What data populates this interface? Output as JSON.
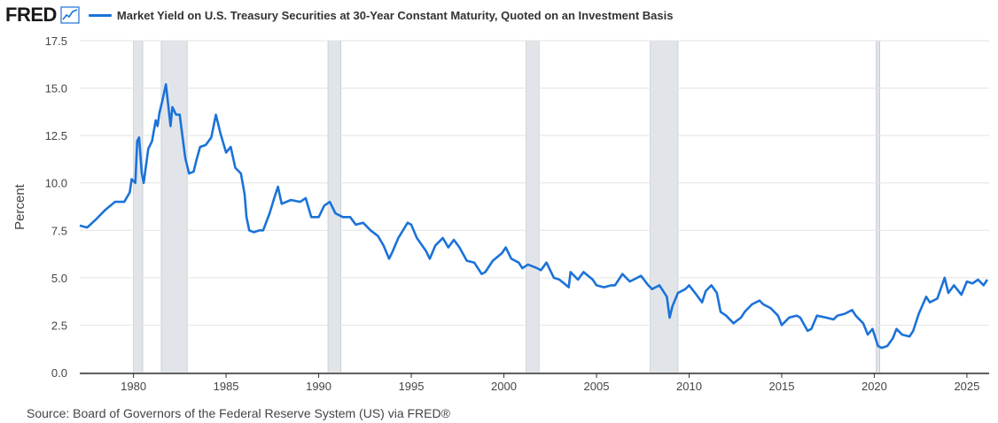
{
  "header": {
    "logo": "FRED",
    "logo_icon": "line-chart-icon"
  },
  "chart_data": {
    "type": "line",
    "series": [
      {
        "name": "Market Yield on U.S. Treasury Securities at 30-Year Constant Maturity, Quoted on an Investment Basis",
        "color": "#1b72d9",
        "points": [
          [
            1977.1,
            7.75
          ],
          [
            1977.5,
            7.65
          ],
          [
            1978.0,
            8.1
          ],
          [
            1978.5,
            8.6
          ],
          [
            1979.0,
            9.0
          ],
          [
            1979.5,
            9.0
          ],
          [
            1979.8,
            9.5
          ],
          [
            1979.9,
            10.2
          ],
          [
            1980.1,
            10.0
          ],
          [
            1980.2,
            12.2
          ],
          [
            1980.3,
            12.4
          ],
          [
            1980.45,
            10.5
          ],
          [
            1980.55,
            10.0
          ],
          [
            1980.8,
            11.8
          ],
          [
            1981.0,
            12.2
          ],
          [
            1981.2,
            13.3
          ],
          [
            1981.3,
            13.0
          ],
          [
            1981.4,
            13.7
          ],
          [
            1981.55,
            14.3
          ],
          [
            1981.75,
            15.2
          ],
          [
            1981.9,
            13.9
          ],
          [
            1982.0,
            13.0
          ],
          [
            1982.1,
            14.0
          ],
          [
            1982.3,
            13.6
          ],
          [
            1982.5,
            13.6
          ],
          [
            1982.6,
            12.8
          ],
          [
            1982.8,
            11.3
          ],
          [
            1983.0,
            10.5
          ],
          [
            1983.25,
            10.6
          ],
          [
            1983.4,
            11.2
          ],
          [
            1983.6,
            11.9
          ],
          [
            1983.9,
            12.0
          ],
          [
            1984.2,
            12.4
          ],
          [
            1984.45,
            13.6
          ],
          [
            1984.7,
            12.6
          ],
          [
            1985.0,
            11.6
          ],
          [
            1985.25,
            11.9
          ],
          [
            1985.5,
            10.8
          ],
          [
            1985.8,
            10.5
          ],
          [
            1986.0,
            9.4
          ],
          [
            1986.1,
            8.2
          ],
          [
            1986.25,
            7.5
          ],
          [
            1986.5,
            7.4
          ],
          [
            1986.8,
            7.5
          ],
          [
            1987.0,
            7.5
          ],
          [
            1987.35,
            8.4
          ],
          [
            1987.6,
            9.2
          ],
          [
            1987.8,
            9.8
          ],
          [
            1988.0,
            8.9
          ],
          [
            1988.5,
            9.1
          ],
          [
            1989.0,
            9.0
          ],
          [
            1989.3,
            9.2
          ],
          [
            1989.6,
            8.2
          ],
          [
            1990.0,
            8.2
          ],
          [
            1990.3,
            8.8
          ],
          [
            1990.6,
            9.0
          ],
          [
            1990.9,
            8.4
          ],
          [
            1991.3,
            8.2
          ],
          [
            1991.7,
            8.2
          ],
          [
            1992.0,
            7.8
          ],
          [
            1992.4,
            7.9
          ],
          [
            1992.8,
            7.5
          ],
          [
            1993.2,
            7.2
          ],
          [
            1993.5,
            6.7
          ],
          [
            1993.8,
            6.0
          ],
          [
            1994.0,
            6.4
          ],
          [
            1994.3,
            7.1
          ],
          [
            1994.8,
            7.9
          ],
          [
            1995.0,
            7.8
          ],
          [
            1995.3,
            7.1
          ],
          [
            1995.8,
            6.4
          ],
          [
            1996.0,
            6.0
          ],
          [
            1996.3,
            6.7
          ],
          [
            1996.7,
            7.1
          ],
          [
            1997.0,
            6.6
          ],
          [
            1997.3,
            7.0
          ],
          [
            1997.6,
            6.6
          ],
          [
            1998.0,
            5.9
          ],
          [
            1998.4,
            5.8
          ],
          [
            1998.8,
            5.2
          ],
          [
            1999.0,
            5.3
          ],
          [
            1999.4,
            5.9
          ],
          [
            1999.9,
            6.3
          ],
          [
            2000.1,
            6.6
          ],
          [
            2000.4,
            6.0
          ],
          [
            2000.8,
            5.8
          ],
          [
            2001.0,
            5.5
          ],
          [
            2001.3,
            5.7
          ],
          [
            2001.8,
            5.5
          ],
          [
            2002.0,
            5.4
          ],
          [
            2002.3,
            5.8
          ],
          [
            2002.7,
            5.0
          ],
          [
            2003.0,
            4.9
          ],
          [
            2003.5,
            4.5
          ],
          [
            2003.6,
            5.3
          ],
          [
            2004.0,
            4.9
          ],
          [
            2004.3,
            5.3
          ],
          [
            2004.8,
            4.9
          ],
          [
            2005.0,
            4.6
          ],
          [
            2005.4,
            4.5
          ],
          [
            2005.8,
            4.6
          ],
          [
            2006.0,
            4.6
          ],
          [
            2006.4,
            5.2
          ],
          [
            2006.8,
            4.8
          ],
          [
            2007.0,
            4.9
          ],
          [
            2007.4,
            5.1
          ],
          [
            2007.8,
            4.6
          ],
          [
            2008.0,
            4.4
          ],
          [
            2008.4,
            4.6
          ],
          [
            2008.8,
            4.0
          ],
          [
            2008.95,
            2.9
          ],
          [
            2009.1,
            3.5
          ],
          [
            2009.4,
            4.2
          ],
          [
            2009.8,
            4.4
          ],
          [
            2010.0,
            4.6
          ],
          [
            2010.4,
            4.1
          ],
          [
            2010.7,
            3.7
          ],
          [
            2010.9,
            4.3
          ],
          [
            2011.2,
            4.6
          ],
          [
            2011.5,
            4.2
          ],
          [
            2011.7,
            3.2
          ],
          [
            2012.0,
            3.0
          ],
          [
            2012.4,
            2.6
          ],
          [
            2012.8,
            2.9
          ],
          [
            2013.0,
            3.2
          ],
          [
            2013.4,
            3.6
          ],
          [
            2013.8,
            3.8
          ],
          [
            2014.0,
            3.6
          ],
          [
            2014.4,
            3.4
          ],
          [
            2014.8,
            3.0
          ],
          [
            2015.0,
            2.5
          ],
          [
            2015.4,
            2.9
          ],
          [
            2015.8,
            3.0
          ],
          [
            2016.0,
            2.9
          ],
          [
            2016.4,
            2.2
          ],
          [
            2016.6,
            2.3
          ],
          [
            2016.9,
            3.0
          ],
          [
            2017.4,
            2.9
          ],
          [
            2017.8,
            2.8
          ],
          [
            2018.0,
            3.0
          ],
          [
            2018.4,
            3.1
          ],
          [
            2018.8,
            3.3
          ],
          [
            2019.0,
            3.0
          ],
          [
            2019.4,
            2.6
          ],
          [
            2019.65,
            2.0
          ],
          [
            2019.9,
            2.3
          ],
          [
            2020.2,
            1.4
          ],
          [
            2020.4,
            1.3
          ],
          [
            2020.7,
            1.4
          ],
          [
            2021.0,
            1.8
          ],
          [
            2021.2,
            2.3
          ],
          [
            2021.5,
            2.0
          ],
          [
            2021.9,
            1.9
          ],
          [
            2022.1,
            2.2
          ],
          [
            2022.4,
            3.1
          ],
          [
            2022.8,
            4.0
          ],
          [
            2023.0,
            3.7
          ],
          [
            2023.4,
            3.9
          ],
          [
            2023.8,
            5.0
          ],
          [
            2024.0,
            4.2
          ],
          [
            2024.3,
            4.6
          ],
          [
            2024.7,
            4.1
          ],
          [
            2025.0,
            4.8
          ],
          [
            2025.3,
            4.7
          ],
          [
            2025.6,
            4.9
          ],
          [
            2025.9,
            4.6
          ],
          [
            2026.1,
            4.9
          ]
        ]
      }
    ],
    "recessions": [
      [
        1980.0,
        1980.5
      ],
      [
        1981.5,
        1982.9
      ],
      [
        1990.5,
        1991.2
      ],
      [
        2001.2,
        2001.9
      ],
      [
        2007.9,
        2009.4
      ],
      [
        2020.1,
        2020.3
      ]
    ],
    "xlim": [
      1977.1,
      2026.2
    ],
    "ylim": [
      0,
      17.5
    ],
    "x_ticks": [
      "1980",
      "1985",
      "1990",
      "1995",
      "2000",
      "2005",
      "2010",
      "2015",
      "2020",
      "2025"
    ],
    "y_ticks": [
      "0.0",
      "2.5",
      "5.0",
      "7.5",
      "10.0",
      "12.5",
      "15.0",
      "17.5"
    ],
    "ylabel": "Percent",
    "grid": true
  },
  "source": "Source: Board of Governors of the Federal Reserve System (US) via FRED®"
}
